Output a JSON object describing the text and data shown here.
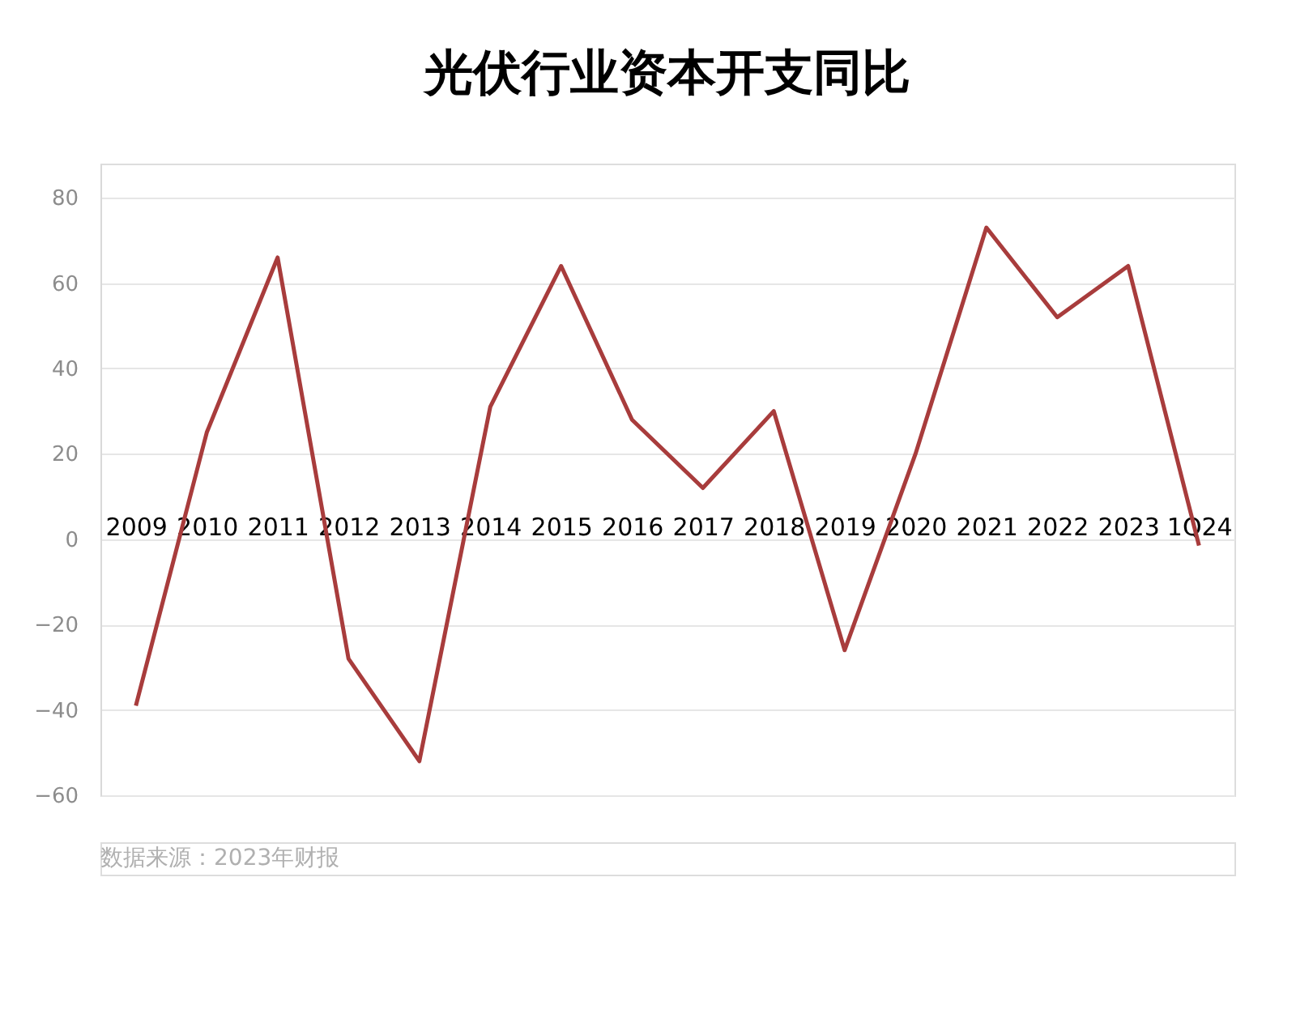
{
  "chart_data": {
    "type": "line",
    "title": "光伏行业资本开支同比",
    "categories": [
      "2009",
      "2010",
      "2011",
      "2012",
      "2013",
      "2014",
      "2015",
      "2016",
      "2017",
      "2018",
      "2019",
      "2020",
      "2021",
      "2022",
      "2023",
      "1Q24"
    ],
    "series": [
      {
        "color": "#a83c3c",
        "values": [
          -39,
          25,
          66,
          -28,
          -52,
          31,
          64,
          28,
          12,
          30,
          -26,
          20,
          73,
          52,
          64,
          -1.5
        ]
      }
    ],
    "ylim": [
      -60,
      88
    ],
    "yticks": [
      -60,
      -40,
      -20,
      0,
      20,
      40,
      60,
      80
    ],
    "grid": "y",
    "legend": false,
    "marker": "none",
    "line_style": "solid",
    "annotations": [
      "数据来源：2023年财报"
    ]
  }
}
